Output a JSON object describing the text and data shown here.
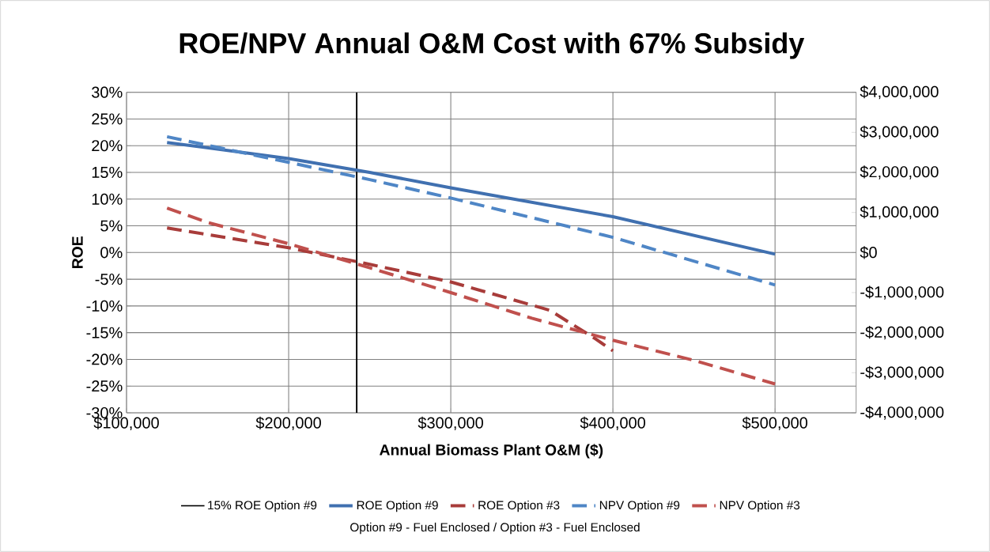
{
  "chart_data": {
    "type": "line",
    "title": "ROE/NPV Annual O&M Cost with 67% Subsidy",
    "xlabel": "Annual Biomass Plant O&M ($)",
    "ylabel": "ROE",
    "annotations": [
      "Option #9 - Fuel Enclosed / Option #3 - Fuel Enclosed"
    ],
    "xlim": [
      100000,
      550000
    ],
    "xticks": [
      {
        "value": 100000,
        "label": "$100,000"
      },
      {
        "value": 200000,
        "label": "$200,000"
      },
      {
        "value": 300000,
        "label": "$300,000"
      },
      {
        "value": 400000,
        "label": "$400,000"
      },
      {
        "value": 500000,
        "label": "$500,000"
      }
    ],
    "ylim": [
      -30,
      30
    ],
    "yticks": [
      {
        "value": -30,
        "label": "-30%"
      },
      {
        "value": -25,
        "label": "-25%"
      },
      {
        "value": -20,
        "label": "-20%"
      },
      {
        "value": -15,
        "label": "-15%"
      },
      {
        "value": -10,
        "label": "-10%"
      },
      {
        "value": -5,
        "label": "-5%"
      },
      {
        "value": 0,
        "label": "0%"
      },
      {
        "value": 5,
        "label": "5%"
      },
      {
        "value": 10,
        "label": "10%"
      },
      {
        "value": 15,
        "label": "15%"
      },
      {
        "value": 20,
        "label": "20%"
      },
      {
        "value": 25,
        "label": "25%"
      },
      {
        "value": 30,
        "label": "30%"
      }
    ],
    "y2lim": [
      -4000000,
      4000000
    ],
    "y2ticks": [
      {
        "value": -4000000,
        "label": "-$4,000,000"
      },
      {
        "value": -3000000,
        "label": "-$3,000,000"
      },
      {
        "value": -2000000,
        "label": "-$2,000,000"
      },
      {
        "value": -1000000,
        "label": "-$1,000,000"
      },
      {
        "value": 0,
        "label": "$0"
      },
      {
        "value": 1000000,
        "label": "$1,000,000"
      },
      {
        "value": 2000000,
        "label": "$2,000,000"
      },
      {
        "value": 3000000,
        "label": "$3,000,000"
      },
      {
        "value": 4000000,
        "label": "$4,000,000"
      }
    ],
    "grid": true,
    "legend": "bottom",
    "ref_lines": [
      {
        "axis": "x",
        "value": 242000,
        "label": "15% ROE Option #9",
        "color": "#000000",
        "line_style": "solid"
      }
    ],
    "series": [
      {
        "name": "ROE Option #9",
        "color": "#4070b0",
        "line_style": "solid",
        "axis": "y",
        "x": [
          125000,
          200000,
          250000,
          300000,
          400000,
          500000
        ],
        "values": [
          20.6,
          17.6,
          15.0,
          12.1,
          6.7,
          -0.3
        ]
      },
      {
        "name": "ROE Option #3",
        "color": "#a83c3a",
        "line_style": "dashed",
        "axis": "y",
        "x": [
          125000,
          200000,
          250000,
          300000,
          361000,
          389000,
          400000
        ],
        "values": [
          4.6,
          0.9,
          -2.2,
          -5.5,
          -10.8,
          -16.1,
          -18.4
        ]
      },
      {
        "name": "NPV Option #9",
        "color": "#4f86c6",
        "line_style": "dashed",
        "axis": "y2",
        "x": [
          125000,
          200000,
          250000,
          300000,
          400000,
          500000
        ],
        "values": [
          2890000,
          2250000,
          1820000,
          1360000,
          380000,
          -810000
        ]
      },
      {
        "name": "NPV Option #3",
        "color": "#c0504d",
        "line_style": "dashed",
        "axis": "y2",
        "x": [
          125000,
          150000,
          200000,
          250000,
          300000,
          350000,
          400000,
          450000,
          500000
        ],
        "values": [
          1110000,
          750000,
          220000,
          -380000,
          -1000000,
          -1640000,
          -2190000,
          -2690000,
          -3280000
        ]
      }
    ]
  }
}
